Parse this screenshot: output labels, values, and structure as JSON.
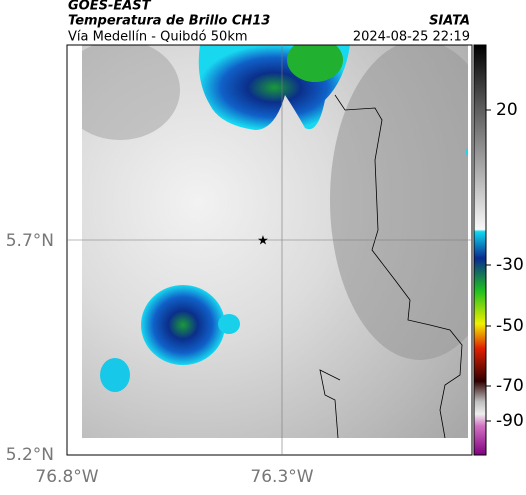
{
  "header": {
    "title": "GOES-EAST",
    "subtitle": "Temperatura de Brillo CH13",
    "region": "Vía Medellín - Quibdó 50km",
    "source": "SIATA",
    "timestamp": "2024-08-25 22:19"
  },
  "map": {
    "lat_labels": [
      "5.7°N",
      "5.2°N"
    ],
    "lon_labels": [
      "76.8°W",
      "76.3°W"
    ]
  },
  "colorbar": {
    "ticks": [
      20,
      -30,
      -50,
      -70,
      -90
    ]
  }
}
